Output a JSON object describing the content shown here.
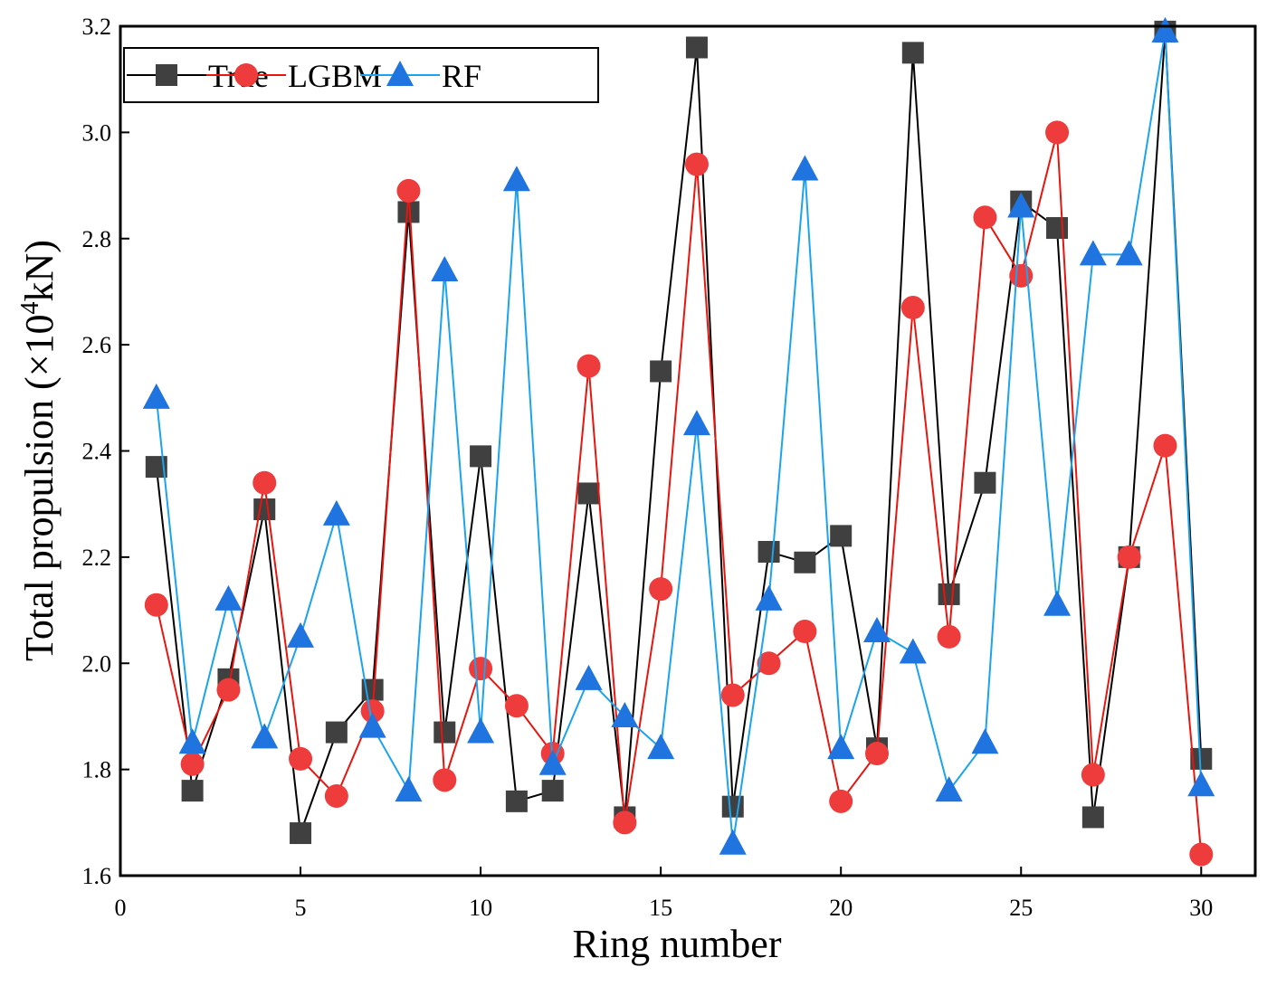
{
  "chart_data": {
    "type": "line",
    "title": "",
    "xlabel": "Ring number",
    "ylabel": {
      "prefix": "Total propulsion (×10",
      "superscript": "4",
      "suffix": "kN)"
    },
    "xlim": [
      0,
      31.5
    ],
    "ylim": [
      1.6,
      3.2
    ],
    "xticks": [
      0,
      5,
      10,
      15,
      20,
      25,
      30
    ],
    "yticks": [
      1.6,
      1.8,
      2.0,
      2.2,
      2.4,
      2.6,
      2.8,
      3.0,
      3.2
    ],
    "legend_position": "top-left",
    "x": [
      1,
      2,
      3,
      4,
      5,
      6,
      7,
      8,
      9,
      10,
      11,
      12,
      13,
      14,
      15,
      16,
      17,
      18,
      19,
      20,
      21,
      22,
      23,
      24,
      25,
      26,
      27,
      28,
      29,
      30
    ],
    "series": [
      {
        "name": "True",
        "color": "#000000",
        "marker_color": "#404040",
        "marker": "square",
        "values": [
          2.37,
          1.76,
          1.97,
          2.29,
          1.68,
          1.87,
          1.95,
          2.85,
          1.87,
          2.39,
          1.74,
          1.76,
          2.32,
          1.71,
          2.55,
          3.16,
          1.73,
          2.21,
          2.19,
          2.24,
          1.84,
          3.15,
          2.13,
          2.34,
          2.87,
          2.82,
          1.71,
          2.2,
          3.19,
          1.82
        ]
      },
      {
        "name": "LGBM",
        "color": "#e8140e",
        "marker_color": "#ee3b3b",
        "marker": "circle",
        "values": [
          2.11,
          1.81,
          1.95,
          2.34,
          1.82,
          1.75,
          1.91,
          2.89,
          1.78,
          1.99,
          1.92,
          1.83,
          2.56,
          1.7,
          2.14,
          2.94,
          1.94,
          2.0,
          2.06,
          1.74,
          1.83,
          2.67,
          2.05,
          2.84,
          2.73,
          3.0,
          1.79,
          2.2,
          2.41,
          1.64
        ]
      },
      {
        "name": "RF",
        "color": "#1aa3ee",
        "marker_color": "#1f74e0",
        "marker": "triangle",
        "values": [
          2.5,
          1.85,
          2.12,
          1.86,
          2.05,
          2.28,
          1.88,
          1.76,
          2.74,
          1.87,
          2.91,
          1.81,
          1.97,
          1.9,
          1.84,
          2.45,
          1.66,
          2.12,
          2.93,
          1.84,
          2.06,
          2.02,
          1.76,
          1.85,
          2.86,
          2.11,
          2.77,
          2.77,
          3.19,
          1.77
        ]
      }
    ]
  }
}
